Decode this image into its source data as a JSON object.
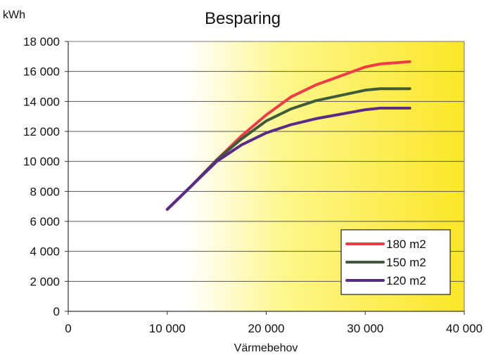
{
  "chart_data": {
    "type": "line",
    "title": "Besparing",
    "ylabel": "kWh",
    "xlabel": "Värmebehov",
    "xlim": [
      0,
      40000
    ],
    "ylim": [
      0,
      18000
    ],
    "x_ticks": [
      "0",
      "10 000",
      "20 000",
      "30 000",
      "40 000"
    ],
    "y_ticks": [
      "0",
      "2 000",
      "4 000",
      "6 000",
      "8 000",
      "10 000",
      "12 000",
      "14 000",
      "16 000",
      "18 000"
    ],
    "grid": true,
    "legend_position": "bottom-right",
    "background": "white-to-yellow gradient",
    "series": [
      {
        "name": "180 m2",
        "color": "#ee3b45",
        "x": [
          10000,
          12500,
          15000,
          17500,
          20000,
          22500,
          25000,
          27500,
          30000,
          31500,
          34500
        ],
        "y": [
          6800,
          8400,
          10100,
          11700,
          13100,
          14300,
          15100,
          15700,
          16300,
          16500,
          16650
        ]
      },
      {
        "name": "150 m2",
        "color": "#3f5c3a",
        "x": [
          10000,
          12500,
          15000,
          17500,
          20000,
          22500,
          25000,
          27500,
          30000,
          31500,
          34500
        ],
        "y": [
          6800,
          8400,
          10100,
          11500,
          12700,
          13500,
          14050,
          14400,
          14750,
          14850,
          14850
        ]
      },
      {
        "name": "120 m2",
        "color": "#5b2a86",
        "x": [
          10000,
          12500,
          15000,
          17500,
          20000,
          22500,
          25000,
          27500,
          30000,
          31500,
          34500
        ],
        "y": [
          6800,
          8400,
          10000,
          11100,
          11900,
          12450,
          12850,
          13150,
          13450,
          13550,
          13550
        ]
      }
    ]
  }
}
